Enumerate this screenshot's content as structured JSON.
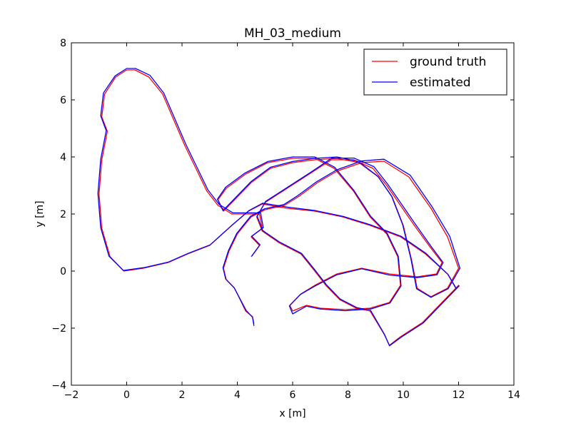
{
  "chart_data": {
    "type": "line",
    "title": "MH_03_medium",
    "xlabel": "x [m]",
    "ylabel": "y [m]",
    "xlim": [
      -2,
      14
    ],
    "ylim": [
      -4,
      8
    ],
    "xticks": [
      -2,
      0,
      2,
      4,
      6,
      8,
      10,
      12,
      14
    ],
    "yticks": [
      -4,
      -2,
      0,
      2,
      4,
      6,
      8
    ],
    "grid": false,
    "legend_position": "top-right",
    "series": [
      {
        "name": "ground truth",
        "color": "#ff0000",
        "points": [
          [
            4.6,
            -1.85
          ],
          [
            4.55,
            -1.6
          ],
          [
            4.3,
            -1.4
          ],
          [
            4.1,
            -1.0
          ],
          [
            3.9,
            -0.6
          ],
          [
            3.6,
            -0.3
          ],
          [
            3.5,
            0.1
          ],
          [
            3.7,
            0.7
          ],
          [
            4.0,
            1.3
          ],
          [
            4.5,
            1.9
          ],
          [
            5.0,
            2.15
          ],
          [
            5.7,
            2.3
          ],
          [
            6.2,
            2.6
          ],
          [
            6.9,
            3.1
          ],
          [
            7.6,
            3.5
          ],
          [
            8.5,
            3.8
          ],
          [
            9.3,
            3.85
          ],
          [
            10.2,
            3.3
          ],
          [
            11.0,
            2.2
          ],
          [
            11.6,
            1.2
          ],
          [
            12.0,
            0.1
          ],
          [
            11.6,
            -0.6
          ],
          [
            11.0,
            -0.9
          ],
          [
            10.5,
            -0.6
          ],
          [
            10.3,
            0.4
          ],
          [
            10.0,
            1.6
          ],
          [
            9.6,
            2.6
          ],
          [
            9.1,
            3.3
          ],
          [
            8.4,
            3.8
          ],
          [
            7.6,
            3.95
          ],
          [
            6.8,
            3.9
          ],
          [
            6.0,
            3.8
          ],
          [
            5.2,
            3.6
          ],
          [
            4.5,
            3.1
          ],
          [
            4.0,
            2.6
          ],
          [
            3.5,
            2.1
          ],
          [
            3.3,
            2.5
          ],
          [
            3.6,
            2.9
          ],
          [
            4.3,
            3.4
          ],
          [
            5.1,
            3.8
          ],
          [
            6.0,
            3.95
          ],
          [
            6.8,
            3.95
          ],
          [
            7.5,
            3.6
          ],
          [
            8.2,
            2.8
          ],
          [
            8.8,
            1.9
          ],
          [
            9.4,
            1.3
          ],
          [
            9.8,
            0.5
          ],
          [
            9.9,
            -0.5
          ],
          [
            9.5,
            -1.1
          ],
          [
            8.8,
            -1.3
          ],
          [
            7.9,
            -1.35
          ],
          [
            7.0,
            -1.3
          ],
          [
            6.5,
            -1.2
          ],
          [
            6.0,
            -1.4
          ],
          [
            5.9,
            -1.2
          ],
          [
            6.3,
            -0.8
          ],
          [
            6.8,
            -0.5
          ],
          [
            7.6,
            -0.1
          ],
          [
            8.5,
            0.1
          ],
          [
            9.5,
            -0.1
          ],
          [
            10.5,
            -0.2
          ],
          [
            11.2,
            -0.1
          ],
          [
            11.4,
            0.3
          ],
          [
            11.0,
            0.8
          ],
          [
            10.4,
            1.6
          ],
          [
            9.9,
            2.3
          ],
          [
            9.4,
            3.0
          ],
          [
            8.9,
            3.6
          ],
          [
            8.2,
            3.9
          ],
          [
            7.4,
            3.9
          ],
          [
            6.6,
            3.4
          ],
          [
            5.8,
            2.9
          ],
          [
            5.0,
            2.4
          ],
          [
            4.7,
            1.9
          ],
          [
            4.9,
            1.4
          ],
          [
            5.5,
            1.0
          ],
          [
            6.3,
            0.6
          ],
          [
            6.8,
            0.0
          ],
          [
            7.2,
            -0.5
          ],
          [
            7.7,
            -1.0
          ],
          [
            8.3,
            -1.3
          ],
          [
            8.8,
            -1.4
          ],
          [
            9.3,
            -2.2
          ],
          [
            9.5,
            -2.6
          ],
          [
            9.9,
            -2.3
          ],
          [
            10.7,
            -1.8
          ],
          [
            11.5,
            -1.0
          ],
          [
            12.0,
            -0.5
          ],
          [
            11.9,
            -0.6
          ],
          [
            11.6,
            -0.1
          ],
          [
            10.8,
            0.6
          ],
          [
            9.9,
            1.2
          ],
          [
            8.8,
            1.6
          ],
          [
            7.8,
            1.9
          ],
          [
            6.8,
            2.1
          ],
          [
            5.8,
            2.2
          ],
          [
            4.9,
            2.35
          ],
          [
            4.4,
            2.1
          ],
          [
            3.8,
            1.6
          ],
          [
            3.0,
            0.9
          ],
          [
            2.2,
            0.6
          ],
          [
            1.5,
            0.3
          ],
          [
            0.6,
            0.1
          ],
          [
            -0.1,
            0.0
          ],
          [
            -0.6,
            0.5
          ],
          [
            -0.9,
            1.5
          ],
          [
            -1.0,
            2.7
          ],
          [
            -0.9,
            3.9
          ],
          [
            -0.7,
            4.9
          ],
          [
            -0.9,
            5.4
          ],
          [
            -0.8,
            6.2
          ],
          [
            -0.4,
            6.8
          ],
          [
            0.0,
            7.05
          ],
          [
            0.3,
            7.05
          ],
          [
            0.8,
            6.8
          ],
          [
            1.3,
            6.2
          ],
          [
            1.7,
            5.3
          ],
          [
            2.1,
            4.4
          ],
          [
            2.5,
            3.6
          ],
          [
            2.9,
            2.8
          ],
          [
            3.3,
            2.3
          ],
          [
            3.8,
            2.0
          ],
          [
            4.3,
            2.0
          ],
          [
            4.8,
            2.0
          ],
          [
            4.9,
            1.5
          ],
          [
            4.5,
            1.2
          ],
          [
            4.8,
            0.9
          ],
          [
            4.5,
            0.5
          ]
        ]
      },
      {
        "name": "estimated",
        "color": "#0000ff",
        "points": [
          [
            4.6,
            -1.92
          ],
          [
            4.55,
            -1.62
          ],
          [
            4.32,
            -1.38
          ],
          [
            4.1,
            -0.98
          ],
          [
            3.88,
            -0.58
          ],
          [
            3.58,
            -0.28
          ],
          [
            3.48,
            0.12
          ],
          [
            3.68,
            0.72
          ],
          [
            3.98,
            1.32
          ],
          [
            4.48,
            1.92
          ],
          [
            4.98,
            2.18
          ],
          [
            5.68,
            2.33
          ],
          [
            6.18,
            2.64
          ],
          [
            6.88,
            3.14
          ],
          [
            7.6,
            3.55
          ],
          [
            8.5,
            3.86
          ],
          [
            9.3,
            3.92
          ],
          [
            10.25,
            3.36
          ],
          [
            11.05,
            2.24
          ],
          [
            11.68,
            1.22
          ],
          [
            12.05,
            0.1
          ],
          [
            11.62,
            -0.62
          ],
          [
            11.0,
            -0.92
          ],
          [
            10.48,
            -0.62
          ],
          [
            10.28,
            0.42
          ],
          [
            9.98,
            1.62
          ],
          [
            9.58,
            2.62
          ],
          [
            9.08,
            3.32
          ],
          [
            8.38,
            3.84
          ],
          [
            7.6,
            4.0
          ],
          [
            6.8,
            3.95
          ],
          [
            6.0,
            3.84
          ],
          [
            5.2,
            3.64
          ],
          [
            4.5,
            3.14
          ],
          [
            4.0,
            2.64
          ],
          [
            3.48,
            2.12
          ],
          [
            3.28,
            2.52
          ],
          [
            3.58,
            2.94
          ],
          [
            4.28,
            3.44
          ],
          [
            5.1,
            3.84
          ],
          [
            6.0,
            4.0
          ],
          [
            6.8,
            4.0
          ],
          [
            7.52,
            3.64
          ],
          [
            8.22,
            2.82
          ],
          [
            8.82,
            1.92
          ],
          [
            9.42,
            1.32
          ],
          [
            9.82,
            0.52
          ],
          [
            9.92,
            -0.52
          ],
          [
            9.52,
            -1.12
          ],
          [
            8.82,
            -1.33
          ],
          [
            7.9,
            -1.39
          ],
          [
            7.0,
            -1.33
          ],
          [
            6.5,
            -1.23
          ],
          [
            6.0,
            -1.5
          ],
          [
            5.88,
            -1.22
          ],
          [
            6.28,
            -0.82
          ],
          [
            6.8,
            -0.53
          ],
          [
            7.6,
            -0.13
          ],
          [
            8.5,
            0.08
          ],
          [
            9.5,
            -0.14
          ],
          [
            10.5,
            -0.23
          ],
          [
            11.22,
            -0.13
          ],
          [
            11.44,
            0.3
          ],
          [
            11.04,
            0.82
          ],
          [
            10.44,
            1.64
          ],
          [
            9.94,
            2.34
          ],
          [
            9.44,
            3.04
          ],
          [
            8.94,
            3.66
          ],
          [
            8.22,
            3.96
          ],
          [
            7.42,
            3.96
          ],
          [
            6.62,
            3.44
          ],
          [
            5.82,
            2.94
          ],
          [
            5.02,
            2.44
          ],
          [
            4.72,
            1.92
          ],
          [
            4.92,
            1.42
          ],
          [
            5.52,
            1.02
          ],
          [
            6.32,
            0.62
          ],
          [
            6.82,
            0.02
          ],
          [
            7.22,
            -0.48
          ],
          [
            7.72,
            -0.98
          ],
          [
            8.32,
            -1.28
          ],
          [
            8.82,
            -1.38
          ],
          [
            9.32,
            -2.22
          ],
          [
            9.5,
            -2.62
          ],
          [
            9.92,
            -2.32
          ],
          [
            10.72,
            -1.82
          ],
          [
            11.52,
            -1.02
          ],
          [
            12.02,
            -0.52
          ],
          [
            11.92,
            -0.62
          ],
          [
            11.62,
            -0.12
          ],
          [
            10.82,
            0.62
          ],
          [
            9.92,
            1.22
          ],
          [
            8.82,
            1.62
          ],
          [
            7.82,
            1.92
          ],
          [
            6.82,
            2.12
          ],
          [
            5.82,
            2.24
          ],
          [
            4.92,
            2.38
          ],
          [
            4.42,
            2.12
          ],
          [
            3.82,
            1.62
          ],
          [
            3.02,
            0.92
          ],
          [
            2.22,
            0.62
          ],
          [
            1.52,
            0.32
          ],
          [
            0.62,
            0.12
          ],
          [
            -0.12,
            0.02
          ],
          [
            -0.64,
            0.52
          ],
          [
            -0.94,
            1.52
          ],
          [
            -1.04,
            2.72
          ],
          [
            -0.94,
            3.92
          ],
          [
            -0.74,
            4.92
          ],
          [
            -0.94,
            5.44
          ],
          [
            -0.84,
            6.24
          ],
          [
            -0.42,
            6.84
          ],
          [
            0.0,
            7.1
          ],
          [
            0.32,
            7.1
          ],
          [
            0.84,
            6.86
          ],
          [
            1.34,
            6.24
          ],
          [
            1.74,
            5.34
          ],
          [
            2.14,
            4.44
          ],
          [
            2.54,
            3.64
          ],
          [
            2.94,
            2.84
          ],
          [
            3.34,
            2.34
          ],
          [
            3.84,
            2.04
          ],
          [
            4.34,
            2.04
          ],
          [
            4.84,
            2.04
          ],
          [
            4.94,
            1.52
          ],
          [
            4.52,
            1.22
          ],
          [
            4.82,
            0.92
          ],
          [
            4.52,
            0.52
          ]
        ]
      }
    ]
  }
}
